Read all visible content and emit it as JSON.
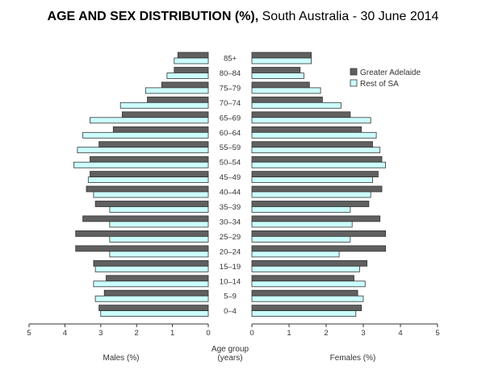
{
  "title_bold": "AGE AND SEX DISTRIBUTION (%),",
  "title_rest": " South Australia - 30 June 2014",
  "chart_data": {
    "type": "bar",
    "orientation": "horizontal",
    "subtype": "population-pyramid",
    "categories": [
      "85+",
      "80–84",
      "75–79",
      "70–74",
      "65–69",
      "60–64",
      "55–59",
      "50–54",
      "45–49",
      "40–44",
      "35–39",
      "30–34",
      "25–29",
      "20–24",
      "15–19",
      "10–14",
      "5–9",
      "0–4"
    ],
    "center_label_line1": "Age group",
    "center_label_line2": "(years)",
    "males_label": "Males (%)",
    "females_label": "Females (%)",
    "xlim": [
      0,
      5
    ],
    "ticks": [
      5,
      4,
      3,
      2,
      1,
      0
    ],
    "legend_position": "top-right",
    "series": [
      {
        "name": "Greater Adelaide",
        "color": "#606060",
        "males": [
          0.85,
          0.95,
          1.3,
          1.7,
          2.4,
          2.65,
          3.05,
          3.3,
          3.3,
          3.4,
          3.15,
          3.5,
          3.7,
          3.7,
          3.2,
          2.85,
          2.9,
          3.05
        ],
        "females": [
          1.6,
          1.3,
          1.55,
          1.9,
          2.65,
          2.95,
          3.25,
          3.5,
          3.4,
          3.5,
          3.15,
          3.45,
          3.6,
          3.6,
          3.1,
          2.75,
          2.85,
          2.95
        ]
      },
      {
        "name": "Rest of SA",
        "color": "#ccffff",
        "males": [
          0.95,
          1.15,
          1.75,
          2.45,
          3.3,
          3.5,
          3.65,
          3.75,
          3.35,
          3.2,
          2.75,
          2.75,
          2.75,
          2.75,
          3.15,
          3.2,
          3.15,
          3.0
        ],
        "females": [
          1.6,
          1.4,
          1.85,
          2.4,
          3.2,
          3.35,
          3.45,
          3.6,
          3.25,
          3.2,
          2.65,
          2.7,
          2.65,
          2.35,
          2.9,
          3.05,
          3.0,
          2.8
        ]
      }
    ]
  }
}
